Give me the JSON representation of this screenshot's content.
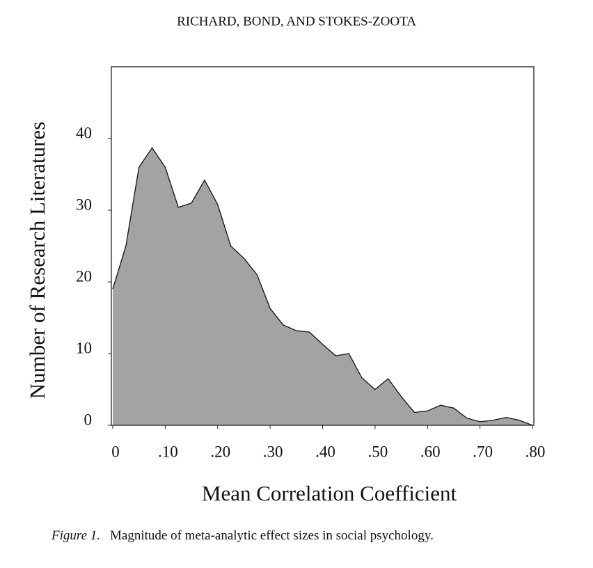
{
  "chart_data": {
    "type": "area",
    "header": "RICHARD, BOND, AND STOKES-ZOOTA",
    "x_label": "Mean Correlation Coefficient",
    "y_label": "Number of Research Literatures",
    "caption_label": "Figure 1.",
    "caption": "Magnitude of meta-analytic effect sizes in social psychology.",
    "x": [
      0,
      0.025,
      0.05,
      0.075,
      0.1,
      0.125,
      0.15,
      0.175,
      0.2,
      0.225,
      0.25,
      0.275,
      0.3,
      0.325,
      0.35,
      0.375,
      0.4,
      0.425,
      0.45,
      0.475,
      0.5,
      0.525,
      0.55,
      0.575,
      0.6,
      0.625,
      0.65,
      0.675,
      0.7,
      0.725,
      0.75,
      0.775,
      0.8
    ],
    "values": [
      19,
      25,
      36,
      38.7,
      36,
      30.4,
      31,
      34.2,
      30.8,
      25,
      23.3,
      21,
      16.3,
      14,
      13.2,
      13,
      11.3,
      9.7,
      10,
      6.6,
      5,
      6.5,
      4,
      1.8,
      2,
      2.8,
      2.4,
      1,
      0.5,
      0.7,
      1.1,
      0.7,
      0
    ],
    "color": "#a3a3a3",
    "xlim": [
      0,
      0.8
    ],
    "xticks": [
      0,
      {
        "value": 0.1,
        "label": ".10"
      },
      {
        "value": 0.2,
        "label": ".20"
      },
      {
        "value": 0.3,
        "label": ".30"
      },
      {
        "value": 0.4,
        "label": ".40"
      },
      {
        "value": 0.5,
        "label": ".50"
      },
      {
        "value": 0.6,
        "label": ".60"
      },
      {
        "value": 0.7,
        "label": ".70"
      },
      {
        "value": 0.8,
        "label": ".80"
      }
    ],
    "ylim": [
      0,
      50
    ],
    "yticks": [
      0,
      10,
      20,
      30,
      40
    ]
  }
}
